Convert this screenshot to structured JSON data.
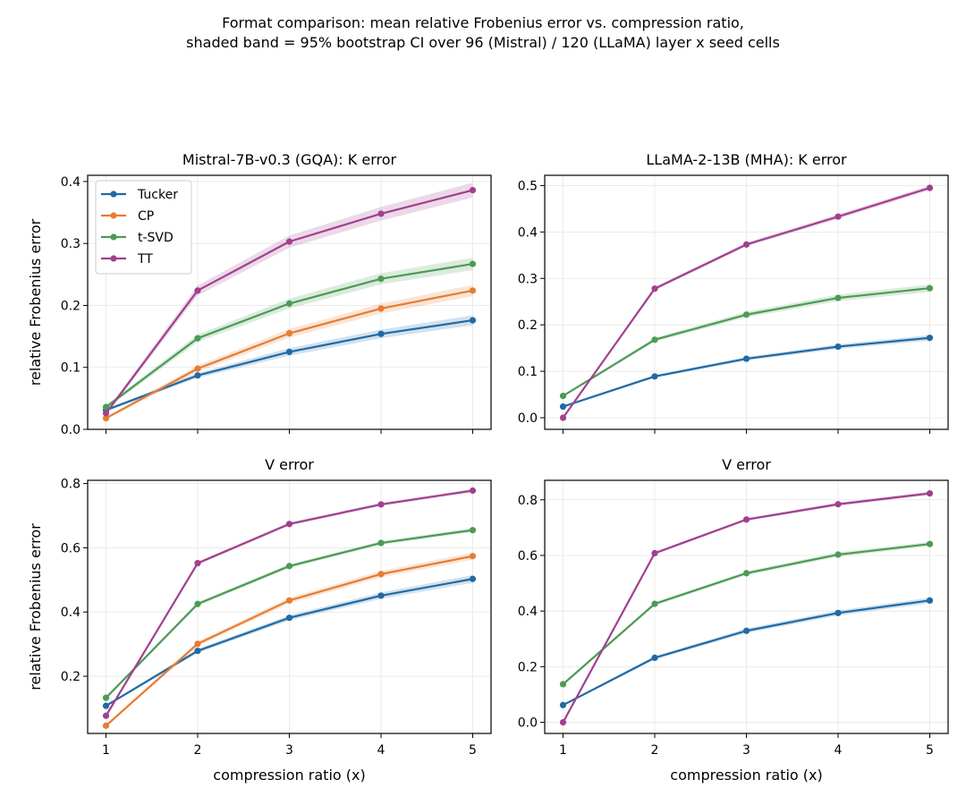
{
  "figure": {
    "title_line1": "Format comparison: mean relative Frobenius error vs. compression ratio,",
    "title_line2": "shaded band = 95% bootstrap CI over 96 (Mistral) / 120 (LLaMA) layer x seed cells"
  },
  "colors": {
    "Tucker": "#1f6aa6",
    "CP": "#e67d33",
    "t-SVD": "#4c9a55",
    "TT": "#a0408e"
  },
  "chart_data": [
    {
      "type": "line",
      "title": "Mistral-7B-v0.3 (GQA): K error",
      "xlabel": "",
      "ylabel": "relative Frobenius error",
      "x": [
        1,
        2,
        3,
        4,
        5
      ],
      "xlim": [
        0.8,
        5.2
      ],
      "ylim": [
        0.0,
        0.41
      ],
      "yticks": [
        0.0,
        0.1,
        0.2,
        0.3,
        0.4
      ],
      "ytick_labels": [
        "0.0",
        "0.1",
        "0.2",
        "0.3",
        "0.4"
      ],
      "xtick_labels_visible": false,
      "legend": "top-left",
      "grid": true,
      "series": [
        {
          "name": "Tucker",
          "values": [
            0.031,
            0.087,
            0.125,
            0.154,
            0.176
          ],
          "ci": [
            0.002,
            0.004,
            0.006,
            0.007,
            0.008
          ]
        },
        {
          "name": "CP",
          "values": [
            0.018,
            0.098,
            0.155,
            0.195,
            0.224
          ],
          "ci": [
            0.002,
            0.005,
            0.007,
            0.008,
            0.009
          ]
        },
        {
          "name": "t-SVD",
          "values": [
            0.036,
            0.147,
            0.203,
            0.243,
            0.267
          ],
          "ci": [
            0.003,
            0.006,
            0.008,
            0.009,
            0.01
          ]
        },
        {
          "name": "TT",
          "values": [
            0.026,
            0.224,
            0.303,
            0.348,
            0.386
          ],
          "ci": [
            0.003,
            0.008,
            0.01,
            0.011,
            0.012
          ]
        }
      ]
    },
    {
      "type": "line",
      "title": "LLaMA-2-13B (MHA): K error",
      "xlabel": "",
      "ylabel": "",
      "x": [
        1,
        2,
        3,
        4,
        5
      ],
      "xlim": [
        0.8,
        5.2
      ],
      "ylim": [
        -0.025,
        0.522
      ],
      "yticks": [
        0.0,
        0.1,
        0.2,
        0.3,
        0.4,
        0.5
      ],
      "ytick_labels": [
        "0.0",
        "0.1",
        "0.2",
        "0.3",
        "0.4",
        "0.5"
      ],
      "xtick_labels_visible": false,
      "grid": true,
      "series": [
        {
          "name": "Tucker",
          "values": [
            0.024,
            0.089,
            0.127,
            0.153,
            0.172
          ],
          "ci": [
            0.002,
            0.003,
            0.004,
            0.005,
            0.006
          ]
        },
        {
          "name": "t-SVD",
          "values": [
            0.047,
            0.168,
            0.222,
            0.258,
            0.279
          ],
          "ci": [
            0.002,
            0.004,
            0.006,
            0.007,
            0.008
          ]
        },
        {
          "name": "TT",
          "values": [
            0.0,
            0.278,
            0.373,
            0.433,
            0.495
          ],
          "ci": [
            0.001,
            0.004,
            0.004,
            0.005,
            0.005
          ]
        }
      ]
    },
    {
      "type": "line",
      "title": "V error",
      "xlabel": "compression ratio (x)",
      "ylabel": "relative Frobenius error",
      "x": [
        1,
        2,
        3,
        4,
        5
      ],
      "xlim": [
        0.8,
        5.2
      ],
      "ylim": [
        0.022,
        0.81
      ],
      "yticks": [
        0.2,
        0.4,
        0.6,
        0.8
      ],
      "ytick_labels": [
        "0.2",
        "0.4",
        "0.6",
        "0.8"
      ],
      "xticks": [
        1,
        2,
        3,
        4,
        5
      ],
      "xtick_labels": [
        "1",
        "2",
        "3",
        "4",
        "5"
      ],
      "grid": true,
      "series": [
        {
          "name": "Tucker",
          "values": [
            0.108,
            0.279,
            0.382,
            0.451,
            0.503
          ],
          "ci": [
            0.003,
            0.006,
            0.008,
            0.01,
            0.012
          ]
        },
        {
          "name": "CP",
          "values": [
            0.046,
            0.301,
            0.436,
            0.518,
            0.574
          ],
          "ci": [
            0.003,
            0.007,
            0.009,
            0.01,
            0.011
          ]
        },
        {
          "name": "t-SVD",
          "values": [
            0.133,
            0.425,
            0.543,
            0.615,
            0.655
          ],
          "ci": [
            0.004,
            0.006,
            0.006,
            0.006,
            0.006
          ]
        },
        {
          "name": "TT",
          "values": [
            0.077,
            0.552,
            0.674,
            0.735,
            0.778
          ],
          "ci": [
            0.003,
            0.005,
            0.005,
            0.005,
            0.005
          ]
        }
      ]
    },
    {
      "type": "line",
      "title": "V error",
      "xlabel": "compression ratio (x)",
      "ylabel": "",
      "x": [
        1,
        2,
        3,
        4,
        5
      ],
      "xlim": [
        0.8,
        5.2
      ],
      "ylim": [
        -0.04,
        0.87
      ],
      "yticks": [
        0.0,
        0.2,
        0.4,
        0.6,
        0.8
      ],
      "ytick_labels": [
        "0.0",
        "0.2",
        "0.4",
        "0.6",
        "0.8"
      ],
      "xticks": [
        1,
        2,
        3,
        4,
        5
      ],
      "xtick_labels": [
        "1",
        "2",
        "3",
        "4",
        "5"
      ],
      "grid": true,
      "series": [
        {
          "name": "Tucker",
          "values": [
            0.062,
            0.232,
            0.329,
            0.393,
            0.438
          ],
          "ci": [
            0.003,
            0.006,
            0.008,
            0.009,
            0.01
          ]
        },
        {
          "name": "t-SVD",
          "values": [
            0.137,
            0.426,
            0.536,
            0.603,
            0.641
          ],
          "ci": [
            0.003,
            0.006,
            0.007,
            0.008,
            0.008
          ]
        },
        {
          "name": "TT",
          "values": [
            0.0,
            0.608,
            0.729,
            0.784,
            0.823
          ],
          "ci": [
            0.001,
            0.005,
            0.005,
            0.006,
            0.006
          ]
        }
      ]
    }
  ]
}
